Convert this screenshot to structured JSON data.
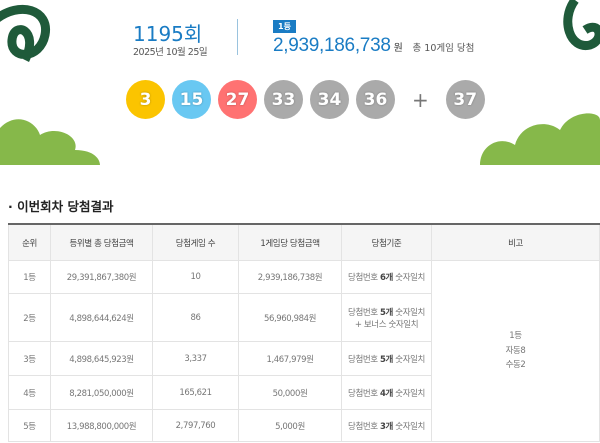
{
  "draw": {
    "round": "1195회",
    "date": "2025년 10월 25일",
    "rank_badge": "1등",
    "first_prize": "2,939,186,738",
    "won": "원",
    "total_games": "총 10게임 당첨"
  },
  "balls": [
    {
      "n": "3",
      "color": "#fbc400"
    },
    {
      "n": "15",
      "color": "#69c8f2"
    },
    {
      "n": "27",
      "color": "#ff7272"
    },
    {
      "n": "33",
      "color": "#aaaaaa"
    },
    {
      "n": "34",
      "color": "#aaaaaa"
    },
    {
      "n": "36",
      "color": "#aaaaaa"
    }
  ],
  "plus": "+",
  "bonus": {
    "n": "37",
    "color": "#aaaaaa"
  },
  "section_title": "· 이번회차 당첨결과",
  "table": {
    "headers": [
      "순위",
      "등위별 총 당첨금액",
      "당첨게임 수",
      "1게임당 당첨금액",
      "당첨기준",
      "비고"
    ],
    "rows": [
      {
        "rank": "1등",
        "total": "29,391,867,380원",
        "count": "10",
        "per": "2,939,186,738원",
        "c1": "당첨번호 ",
        "cb": "6개",
        "c2": " 숫자일치",
        "c3": ""
      },
      {
        "rank": "2등",
        "total": "4,898,644,624원",
        "count": "86",
        "per": "56,960,984원",
        "c1": "당첨번호 ",
        "cb": "5개",
        "c2": " 숫자일치",
        "c3": "+ 보너스 숫자일치"
      },
      {
        "rank": "3등",
        "total": "4,898,645,923원",
        "count": "3,337",
        "per": "1,467,979원",
        "c1": "당첨번호 ",
        "cb": "5개",
        "c2": " 숫자일치",
        "c3": ""
      },
      {
        "rank": "4등",
        "total": "8,281,050,000원",
        "count": "165,621",
        "per": "50,000원",
        "c1": "당첨번호 ",
        "cb": "4개",
        "c2": " 숫자일치",
        "c3": ""
      },
      {
        "rank": "5등",
        "total": "13,988,800,000원",
        "count": "2,797,760",
        "per": "5,000원",
        "c1": "당첨번호 ",
        "cb": "3개",
        "c2": " 숫자일치",
        "c3": ""
      }
    ],
    "note": [
      "1등",
      "자동8",
      "수동2"
    ]
  },
  "colors": {
    "accent": "#1a7cc4",
    "dark_green": "#1f5a3a",
    "light_green": "#86b84a"
  }
}
